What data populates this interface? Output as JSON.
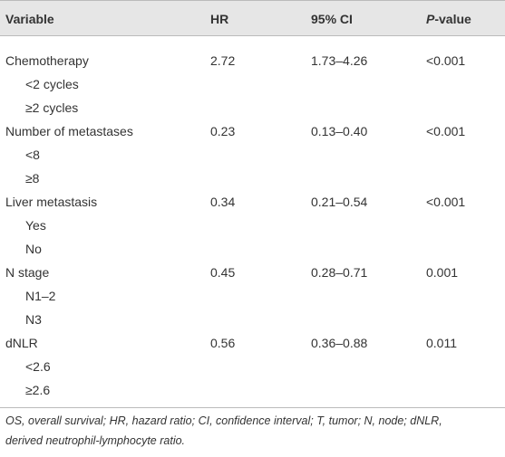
{
  "table": {
    "header": [
      "Variable",
      "HR",
      "95% CI",
      {
        "italic": "P",
        "rest": "-value"
      }
    ],
    "rows": [
      [
        "Chemotherapy",
        "2.72",
        "1.73–4.26",
        "<0.001"
      ],
      [
        "<2 cycles"
      ],
      [
        "≥2 cycles"
      ],
      [
        "Number of metastases",
        "0.23",
        "0.13–0.40",
        "<0.001"
      ],
      [
        "<8"
      ],
      [
        "≥8"
      ],
      [
        "Liver metastasis",
        "0.34",
        "0.21–0.54",
        "<0.001"
      ],
      [
        "Yes"
      ],
      [
        "No"
      ],
      [
        "N stage",
        "0.45",
        "0.28–0.71",
        "0.001"
      ],
      [
        "N1–2"
      ],
      [
        "N3"
      ],
      [
        "dNLR",
        "0.56",
        "0.36–0.88",
        "0.011"
      ],
      [
        "<2.6"
      ],
      [
        "≥2.6"
      ]
    ]
  },
  "footnote": [
    "OS, overall survival; HR, hazard ratio; CI, confidence interval; T, tumor; N, node; dNLR,",
    "derived neutrophil-lymphocyte ratio."
  ]
}
